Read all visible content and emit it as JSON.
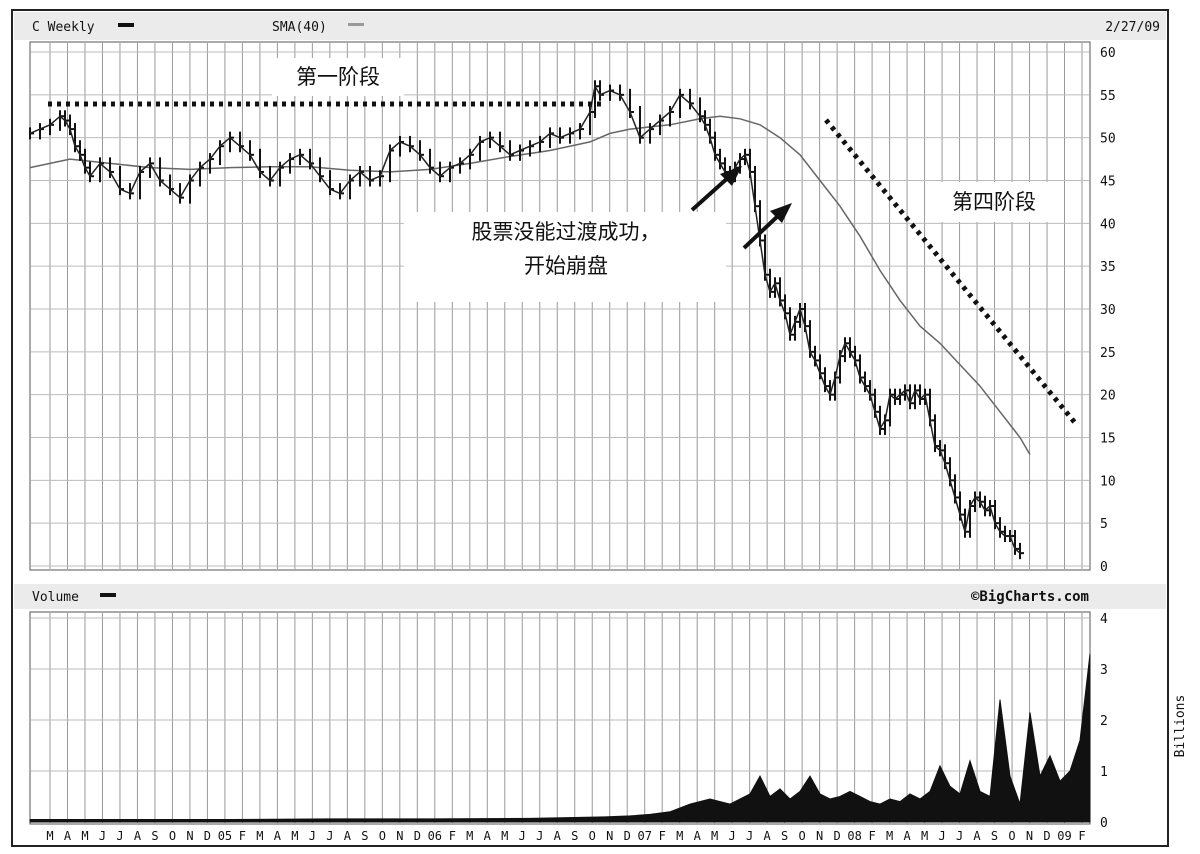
{
  "chart_data": {
    "type": "line",
    "header": {
      "symbol_label": "C Weekly",
      "indicator_label": "SMA(40)",
      "date_label": "2/27/09",
      "volume_label": "Volume",
      "source_label": "©BigCharts.com",
      "volume_unit": "Billions"
    },
    "price_axis": {
      "ticks": [
        0,
        5,
        10,
        15,
        20,
        25,
        30,
        35,
        40,
        45,
        50,
        55,
        60
      ],
      "range": [
        0,
        60
      ]
    },
    "volume_axis": {
      "ticks": [
        0,
        1,
        2,
        3,
        4
      ],
      "range": [
        0,
        4
      ]
    },
    "x_tick_labels": [
      "M",
      "A",
      "M",
      "J",
      "J",
      "A",
      "S",
      "O",
      "N",
      "D",
      "05",
      "F",
      "M",
      "A",
      "M",
      "J",
      "J",
      "A",
      "S",
      "O",
      "N",
      "D",
      "06",
      "F",
      "M",
      "A",
      "M",
      "J",
      "J",
      "A",
      "S",
      "O",
      "N",
      "D",
      "07",
      "F",
      "M",
      "A",
      "M",
      "J",
      "J",
      "A",
      "S",
      "O",
      "N",
      "D",
      "08",
      "F",
      "M",
      "A",
      "M",
      "J",
      "J",
      "A",
      "S",
      "O",
      "N",
      "D",
      "09",
      "F"
    ],
    "annotations": {
      "stage1": "第一阶段",
      "stage4": "第四阶段",
      "failure_line1": "股票没能过渡成功，",
      "failure_line2": "开始崩盘"
    },
    "series": [
      {
        "name": "C Weekly",
        "style": "weekly price bars",
        "values": [
          [
            0,
            50.5
          ],
          [
            2,
            51
          ],
          [
            4,
            51.5
          ],
          [
            6,
            52.5
          ],
          [
            7,
            52
          ],
          [
            8,
            51
          ],
          [
            9,
            49
          ],
          [
            10,
            48
          ],
          [
            11,
            46.5
          ],
          [
            12,
            45.5
          ],
          [
            14,
            47
          ],
          [
            16,
            46
          ],
          [
            18,
            44
          ],
          [
            20,
            43.5
          ],
          [
            22,
            46
          ],
          [
            24,
            47
          ],
          [
            26,
            45
          ],
          [
            28,
            44
          ],
          [
            30,
            43
          ],
          [
            32,
            45
          ],
          [
            34,
            46.5
          ],
          [
            36,
            47.5
          ],
          [
            38,
            49
          ],
          [
            40,
            50
          ],
          [
            42,
            49
          ],
          [
            44,
            48
          ],
          [
            46,
            46
          ],
          [
            48,
            45
          ],
          [
            50,
            46.5
          ],
          [
            52,
            47.5
          ],
          [
            54,
            48
          ],
          [
            56,
            47
          ],
          [
            58,
            45.5
          ],
          [
            60,
            44
          ],
          [
            62,
            43.5
          ],
          [
            64,
            45
          ],
          [
            66,
            46
          ],
          [
            68,
            45
          ],
          [
            70,
            45.5
          ],
          [
            72,
            48.5
          ],
          [
            74,
            49.5
          ],
          [
            76,
            49
          ],
          [
            78,
            48
          ],
          [
            80,
            46.5
          ],
          [
            82,
            45.5
          ],
          [
            84,
            46.5
          ],
          [
            86,
            47
          ],
          [
            88,
            48
          ],
          [
            90,
            49.5
          ],
          [
            92,
            50
          ],
          [
            94,
            49
          ],
          [
            96,
            48
          ],
          [
            98,
            48.5
          ],
          [
            100,
            49
          ],
          [
            102,
            49.5
          ],
          [
            104,
            50.5
          ],
          [
            106,
            50
          ],
          [
            108,
            50.5
          ],
          [
            110,
            51
          ],
          [
            112,
            53
          ],
          [
            113,
            56
          ],
          [
            114,
            55
          ],
          [
            116,
            55.5
          ],
          [
            118,
            55
          ],
          [
            120,
            53
          ],
          [
            122,
            50
          ],
          [
            124,
            51
          ],
          [
            126,
            52
          ],
          [
            128,
            53
          ],
          [
            130,
            55
          ],
          [
            132,
            54
          ],
          [
            134,
            52.5
          ],
          [
            135,
            51.5
          ],
          [
            136,
            50
          ],
          [
            137,
            48
          ],
          [
            138,
            47
          ],
          [
            139,
            46
          ],
          [
            140,
            45.5
          ],
          [
            141,
            46.5
          ],
          [
            142,
            47.5
          ],
          [
            143,
            48
          ],
          [
            144,
            46
          ],
          [
            145,
            42
          ],
          [
            146,
            38
          ],
          [
            147,
            34
          ],
          [
            148,
            32
          ],
          [
            149,
            33
          ],
          [
            150,
            31
          ],
          [
            151,
            29.5
          ],
          [
            152,
            27
          ],
          [
            153,
            28.5
          ],
          [
            154,
            30
          ],
          [
            155,
            28
          ],
          [
            156,
            25
          ],
          [
            157,
            24
          ],
          [
            158,
            22.5
          ],
          [
            159,
            21
          ],
          [
            160,
            20
          ],
          [
            161,
            22
          ],
          [
            162,
            24.5
          ],
          [
            163,
            26
          ],
          [
            164,
            25
          ],
          [
            165,
            24
          ],
          [
            166,
            22
          ],
          [
            167,
            21
          ],
          [
            168,
            20
          ],
          [
            169,
            18
          ],
          [
            170,
            16
          ],
          [
            171,
            17
          ],
          [
            172,
            20
          ],
          [
            173,
            19.5
          ],
          [
            174,
            20
          ],
          [
            175,
            20.5
          ],
          [
            176,
            19
          ],
          [
            177,
            20.5
          ],
          [
            178,
            19.5
          ],
          [
            179,
            20
          ],
          [
            180,
            17
          ],
          [
            181,
            14
          ],
          [
            182,
            13.5
          ],
          [
            183,
            12
          ],
          [
            184,
            10
          ],
          [
            185,
            8
          ],
          [
            186,
            6
          ],
          [
            187,
            4
          ],
          [
            188,
            7
          ],
          [
            189,
            8
          ],
          [
            190,
            7.5
          ],
          [
            191,
            6.5
          ],
          [
            192,
            7
          ],
          [
            193,
            5
          ],
          [
            194,
            4
          ],
          [
            195,
            3.5
          ],
          [
            196,
            3.5
          ],
          [
            197,
            2
          ],
          [
            198,
            1.5
          ]
        ]
      },
      {
        "name": "SMA(40)",
        "values": [
          [
            0,
            46.5
          ],
          [
            8,
            47.5
          ],
          [
            16,
            47
          ],
          [
            24,
            46.5
          ],
          [
            32,
            46.3
          ],
          [
            40,
            46.5
          ],
          [
            48,
            46.6
          ],
          [
            56,
            46.6
          ],
          [
            64,
            46.2
          ],
          [
            72,
            46
          ],
          [
            80,
            46.3
          ],
          [
            88,
            47
          ],
          [
            96,
            47.8
          ],
          [
            104,
            48.5
          ],
          [
            112,
            49.5
          ],
          [
            116,
            50.5
          ],
          [
            120,
            51
          ],
          [
            128,
            51.5
          ],
          [
            134,
            52.2
          ],
          [
            138,
            52.5
          ],
          [
            142,
            52.2
          ],
          [
            146,
            51.5
          ],
          [
            150,
            50
          ],
          [
            154,
            48
          ],
          [
            158,
            45
          ],
          [
            162,
            42
          ],
          [
            166,
            38.5
          ],
          [
            170,
            34.5
          ],
          [
            174,
            31
          ],
          [
            178,
            28
          ],
          [
            182,
            26
          ],
          [
            186,
            23.5
          ],
          [
            190,
            21
          ],
          [
            194,
            18
          ],
          [
            198,
            15
          ],
          [
            200,
            13
          ]
        ]
      }
    ],
    "volume": [
      [
        0,
        0.05
      ],
      [
        20,
        0.05
      ],
      [
        40,
        0.05
      ],
      [
        60,
        0.06
      ],
      [
        80,
        0.06
      ],
      [
        100,
        0.07
      ],
      [
        115,
        0.1
      ],
      [
        120,
        0.12
      ],
      [
        124,
        0.15
      ],
      [
        128,
        0.2
      ],
      [
        132,
        0.35
      ],
      [
        136,
        0.45
      ],
      [
        140,
        0.35
      ],
      [
        144,
        0.55
      ],
      [
        146,
        0.9
      ],
      [
        148,
        0.5
      ],
      [
        150,
        0.65
      ],
      [
        152,
        0.45
      ],
      [
        154,
        0.6
      ],
      [
        156,
        0.9
      ],
      [
        158,
        0.55
      ],
      [
        160,
        0.45
      ],
      [
        162,
        0.5
      ],
      [
        164,
        0.6
      ],
      [
        166,
        0.5
      ],
      [
        168,
        0.4
      ],
      [
        170,
        0.35
      ],
      [
        172,
        0.45
      ],
      [
        174,
        0.4
      ],
      [
        176,
        0.55
      ],
      [
        178,
        0.45
      ],
      [
        180,
        0.6
      ],
      [
        182,
        1.1
      ],
      [
        184,
        0.7
      ],
      [
        186,
        0.55
      ],
      [
        188,
        1.2
      ],
      [
        190,
        0.6
      ],
      [
        192,
        0.5
      ],
      [
        194,
        2.4
      ],
      [
        196,
        0.9
      ],
      [
        198,
        0.35
      ],
      [
        200,
        2.15
      ],
      [
        202,
        0.9
      ],
      [
        204,
        1.3
      ],
      [
        206,
        0.8
      ],
      [
        208,
        1.0
      ],
      [
        210,
        1.6
      ],
      [
        212,
        3.3
      ]
    ]
  }
}
